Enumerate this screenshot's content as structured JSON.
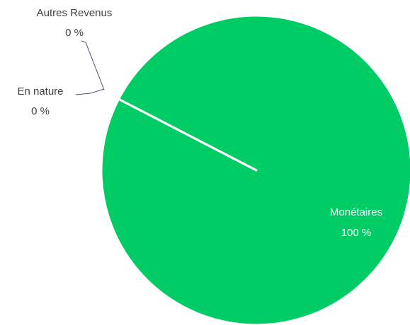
{
  "chart_data": {
    "type": "pie",
    "categories": [
      "Monétaires",
      "En nature",
      "Autres Revenus"
    ],
    "values": [
      100,
      0,
      0
    ],
    "value_labels": [
      "100 %",
      "0 %",
      "0 %"
    ],
    "color": "#00cc66"
  }
}
